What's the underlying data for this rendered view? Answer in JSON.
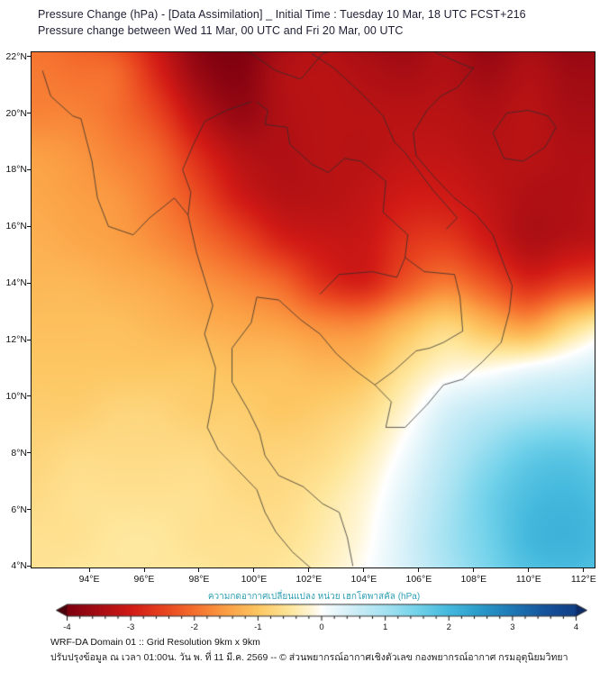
{
  "header": {
    "line1": "Pressure Change (hPa) - [Data Assimilation] _ Initial Time : Tuesday 10 Mar, 18 UTC FCST+216",
    "line2": "Pressure change between Wed 11 Mar, 00 UTC and Fri 20 Mar, 00 UTC"
  },
  "axes": {
    "x_ticks": [
      {
        "label": "94°E",
        "value": 94
      },
      {
        "label": "96°E",
        "value": 96
      },
      {
        "label": "98°E",
        "value": 98
      },
      {
        "label": "100°E",
        "value": 100
      },
      {
        "label": "102°E",
        "value": 102
      },
      {
        "label": "104°E",
        "value": 104
      },
      {
        "label": "106°E",
        "value": 106
      },
      {
        "label": "108°E",
        "value": 108
      },
      {
        "label": "110°E",
        "value": 110
      },
      {
        "label": "112°E",
        "value": 112
      }
    ],
    "y_ticks": [
      {
        "label": "4°N",
        "value": 4
      },
      {
        "label": "6°N",
        "value": 6
      },
      {
        "label": "8°N",
        "value": 8
      },
      {
        "label": "10°N",
        "value": 10
      },
      {
        "label": "12°N",
        "value": 12
      },
      {
        "label": "14°N",
        "value": 14
      },
      {
        "label": "16°N",
        "value": 16
      },
      {
        "label": "18°N",
        "value": 18
      },
      {
        "label": "20°N",
        "value": 20
      },
      {
        "label": "22°N",
        "value": 22
      }
    ]
  },
  "colorbar": {
    "title": "ความกดอากาศเปลี่ยนแปลง หน่วย เฮกโตพาสคัล (hPa)",
    "tick_labels": [
      "-4",
      "-3",
      "-2",
      "-1",
      "0",
      "1",
      "2",
      "3",
      "4"
    ],
    "min": -4,
    "max": 4,
    "title_color": "#2e9fb3"
  },
  "footer": {
    "line1": "WRF-DA Domain 01 :: Grid Resolution 9km x 9km",
    "line2": "ปรับปรุงข้อมูล ณ เวลา 01:00น. วัน พ. ที่ 11 มี.ค. 2569 -- © ส่วนพยากรณ์อากาศเชิงตัวเลข กองพยากรณ์อากาศ กรมอุตุนิยมวิทยา"
  },
  "chart_data": {
    "type": "heatmap",
    "title": "Pressure change (hPa) between Wed 11 Mar 00 UTC and Fri 20 Mar 00 UTC",
    "units": "hPa",
    "lon_range": [
      91.9,
      112.4
    ],
    "lat_range": [
      3.95,
      22.15
    ],
    "value_range": [
      -4,
      4
    ],
    "grid": {
      "lons": [
        92,
        93.5,
        95,
        96.5,
        98,
        99.5,
        101,
        102.5,
        104,
        105.5,
        107,
        108.5,
        110,
        111.5,
        113
      ],
      "lats": [
        23,
        21.5,
        20,
        18.5,
        17,
        15.5,
        14,
        12.5,
        11,
        9.5,
        8,
        6.5,
        5,
        3.5
      ],
      "values": [
        [
          -2.0,
          -2.2,
          -2.6,
          -3.2,
          -3.9,
          -4.0,
          -3.6,
          -3.4,
          -3.6,
          -3.7,
          -3.5,
          -3.8,
          -3.6,
          -3.8,
          -3.7
        ],
        [
          -1.9,
          -2.0,
          -2.1,
          -2.9,
          -3.7,
          -3.9,
          -3.4,
          -3.3,
          -3.4,
          -3.5,
          -3.4,
          -3.6,
          -3.4,
          -3.6,
          -3.6
        ],
        [
          -1.8,
          -1.8,
          -2.0,
          -2.5,
          -3.3,
          -3.7,
          -3.4,
          -3.3,
          -3.3,
          -3.3,
          -3.3,
          -3.4,
          -3.3,
          -3.5,
          -3.5
        ],
        [
          -1.5,
          -1.6,
          -1.8,
          -2.1,
          -2.8,
          -3.3,
          -3.4,
          -3.3,
          -3.3,
          -3.2,
          -3.2,
          -3.3,
          -3.3,
          -3.4,
          -3.4
        ],
        [
          -1.4,
          -1.5,
          -1.6,
          -1.9,
          -2.4,
          -3.0,
          -3.3,
          -3.3,
          -3.2,
          -3.0,
          -3.0,
          -3.2,
          -3.4,
          -3.4,
          -3.3
        ],
        [
          -1.3,
          -1.4,
          -1.5,
          -1.7,
          -2.0,
          -2.4,
          -2.9,
          -3.1,
          -3.1,
          -2.7,
          -2.6,
          -3.0,
          -3.4,
          -3.3,
          -3.2
        ],
        [
          -1.2,
          -1.2,
          -1.3,
          -1.4,
          -1.6,
          -1.8,
          -2.1,
          -2.7,
          -2.9,
          -2.3,
          -1.9,
          -2.3,
          -2.8,
          -2.5,
          -2.3
        ],
        [
          -1.1,
          -1.1,
          -1.1,
          -1.2,
          -1.3,
          -1.4,
          -1.5,
          -1.7,
          -1.7,
          -1.2,
          -0.8,
          -1.2,
          -1.5,
          -0.8,
          -0.3
        ],
        [
          -1.0,
          -1.0,
          -1.0,
          -1.0,
          -1.0,
          -1.1,
          -1.1,
          -1.2,
          -1.1,
          -0.6,
          -0.2,
          -0.1,
          0.1,
          0.3,
          0.5
        ],
        [
          -0.9,
          -0.9,
          -0.8,
          -0.8,
          -0.9,
          -0.9,
          -1.0,
          -0.9,
          -0.7,
          -0.2,
          0.4,
          0.7,
          0.9,
          1.0,
          1.0
        ],
        [
          -0.8,
          -0.7,
          -0.7,
          -0.7,
          -0.7,
          -0.8,
          -0.8,
          -0.7,
          -0.4,
          0.1,
          0.7,
          1.2,
          1.6,
          1.7,
          1.5
        ],
        [
          -0.7,
          -0.6,
          -0.6,
          -0.6,
          -0.6,
          -0.7,
          -0.7,
          -0.5,
          -0.2,
          0.3,
          0.9,
          1.5,
          1.9,
          2.0,
          1.8
        ],
        [
          -0.6,
          -0.6,
          -0.5,
          -0.5,
          -0.6,
          -0.6,
          -0.6,
          -0.4,
          -0.1,
          0.4,
          1.0,
          1.5,
          2.0,
          2.1,
          1.9
        ],
        [
          -0.6,
          -0.5,
          -0.5,
          -0.5,
          -0.5,
          -0.6,
          -0.5,
          -0.3,
          0.0,
          0.4,
          0.9,
          1.4,
          1.8,
          1.9,
          1.8
        ]
      ]
    },
    "colormap": [
      [
        -4.5,
        "#4c0009"
      ],
      [
        -4.0,
        "#7e000f"
      ],
      [
        -3.5,
        "#a80e14"
      ],
      [
        -3.0,
        "#d11a15"
      ],
      [
        -2.5,
        "#e8431f"
      ],
      [
        -2.0,
        "#f5702e"
      ],
      [
        -1.5,
        "#fba045"
      ],
      [
        -1.0,
        "#fdc763"
      ],
      [
        -0.5,
        "#fee79c"
      ],
      [
        -0.15,
        "#fff7db"
      ],
      [
        0.0,
        "#ffffff"
      ],
      [
        0.15,
        "#eef9fc"
      ],
      [
        0.5,
        "#cfeef7"
      ],
      [
        1.0,
        "#a5e2f2"
      ],
      [
        1.5,
        "#72d2ea"
      ],
      [
        2.0,
        "#44b9dd"
      ],
      [
        2.5,
        "#2a9aca"
      ],
      [
        3.0,
        "#1e78b4"
      ],
      [
        3.5,
        "#16549c"
      ],
      [
        4.0,
        "#103e86"
      ],
      [
        4.5,
        "#0b2b66"
      ]
    ],
    "map_outline": {
      "lines": [
        [
          [
            92.3,
            21.5
          ],
          [
            92.6,
            20.6
          ],
          [
            93.4,
            19.9
          ],
          [
            93.7,
            19.8
          ],
          [
            94.1,
            18.3
          ],
          [
            94.3,
            17.0
          ],
          [
            94.7,
            16.0
          ],
          [
            95.6,
            15.7
          ],
          [
            96.2,
            16.3
          ],
          [
            97.1,
            17.0
          ],
          [
            97.6,
            16.4
          ],
          [
            97.9,
            15.1
          ],
          [
            98.5,
            13.2
          ],
          [
            98.2,
            12.2
          ],
          [
            98.6,
            11.0
          ],
          [
            98.5,
            9.9
          ],
          [
            98.3,
            8.9
          ],
          [
            98.7,
            8.1
          ],
          [
            99.4,
            7.4
          ],
          [
            100.1,
            6.7
          ],
          [
            100.4,
            5.9
          ],
          [
            100.8,
            5.2
          ],
          [
            101.4,
            4.5
          ],
          [
            102.1,
            3.9
          ]
        ],
        [
          [
            103.6,
            4.0
          ],
          [
            103.4,
            5.0
          ],
          [
            103.1,
            5.9
          ],
          [
            102.5,
            6.2
          ],
          [
            101.8,
            6.8
          ],
          [
            100.9,
            7.2
          ],
          [
            100.4,
            7.9
          ],
          [
            100.2,
            8.7
          ],
          [
            99.8,
            9.5
          ],
          [
            99.2,
            10.5
          ],
          [
            99.2,
            11.7
          ],
          [
            99.9,
            12.6
          ],
          [
            100.1,
            13.5
          ],
          [
            100.9,
            13.4
          ],
          [
            101.7,
            12.7
          ],
          [
            102.4,
            12.2
          ],
          [
            103.0,
            11.5
          ],
          [
            103.7,
            10.9
          ],
          [
            104.4,
            10.4
          ],
          [
            105.0,
            9.8
          ],
          [
            104.8,
            8.9
          ],
          [
            105.5,
            8.9
          ],
          [
            106.3,
            9.7
          ],
          [
            106.9,
            10.4
          ],
          [
            107.6,
            10.6
          ],
          [
            108.3,
            11.2
          ],
          [
            109.0,
            11.9
          ],
          [
            109.3,
            13.0
          ],
          [
            109.4,
            13.9
          ],
          [
            109.0,
            14.9
          ],
          [
            108.7,
            15.7
          ],
          [
            108.1,
            16.4
          ],
          [
            107.3,
            17.0
          ],
          [
            106.6,
            17.7
          ],
          [
            105.9,
            18.5
          ],
          [
            105.8,
            19.3
          ],
          [
            106.3,
            20.1
          ],
          [
            106.8,
            20.6
          ],
          [
            107.4,
            20.9
          ],
          [
            108.0,
            21.6
          ]
        ],
        [
          [
            108.7,
            19.3
          ],
          [
            109.2,
            20.0
          ],
          [
            110.0,
            20.1
          ],
          [
            110.7,
            19.9
          ],
          [
            111.0,
            19.5
          ],
          [
            110.6,
            18.8
          ],
          [
            109.8,
            18.3
          ],
          [
            109.1,
            18.4
          ],
          [
            108.7,
            19.3
          ]
        ],
        [
          [
            98.8,
            22.8
          ],
          [
            99.9,
            22.1
          ],
          [
            100.8,
            21.5
          ],
          [
            101.7,
            21.2
          ],
          [
            102.5,
            22.1
          ],
          [
            103.9,
            22.5
          ],
          [
            105.3,
            22.9
          ],
          [
            106.7,
            22.1
          ],
          [
            107.9,
            21.6
          ],
          [
            108.0,
            21.6
          ]
        ],
        [
          [
            99.9,
            20.4
          ],
          [
            99.0,
            20.1
          ],
          [
            98.2,
            19.7
          ],
          [
            97.8,
            18.9
          ],
          [
            97.4,
            18.0
          ],
          [
            97.7,
            17.2
          ],
          [
            97.6,
            16.4
          ]
        ],
        [
          [
            100.1,
            20.4
          ],
          [
            100.5,
            20.1
          ],
          [
            100.4,
            19.6
          ],
          [
            101.2,
            19.5
          ],
          [
            101.3,
            18.9
          ],
          [
            102.1,
            18.2
          ],
          [
            102.7,
            17.9
          ],
          [
            103.3,
            18.4
          ],
          [
            103.9,
            18.3
          ],
          [
            104.8,
            17.6
          ],
          [
            104.7,
            16.5
          ],
          [
            105.6,
            15.7
          ],
          [
            105.5,
            14.9
          ]
        ],
        [
          [
            102.4,
            13.6
          ],
          [
            103.1,
            14.3
          ],
          [
            104.3,
            14.4
          ],
          [
            105.2,
            14.2
          ],
          [
            105.5,
            14.9
          ]
        ],
        [
          [
            102.1,
            22.1
          ],
          [
            102.9,
            21.6
          ],
          [
            103.9,
            20.7
          ],
          [
            104.7,
            19.9
          ],
          [
            105.1,
            19.0
          ],
          [
            105.5,
            18.6
          ],
          [
            106.5,
            17.3
          ],
          [
            107.4,
            16.3
          ],
          [
            107.0,
            15.9
          ]
        ],
        [
          [
            105.5,
            14.9
          ],
          [
            106.2,
            14.4
          ],
          [
            107.3,
            14.3
          ],
          [
            107.5,
            13.5
          ],
          [
            107.6,
            12.3
          ],
          [
            106.9,
            11.9
          ],
          [
            106.4,
            11.7
          ],
          [
            105.9,
            11.6
          ],
          [
            105.1,
            10.9
          ],
          [
            104.4,
            10.4
          ]
        ]
      ]
    }
  }
}
